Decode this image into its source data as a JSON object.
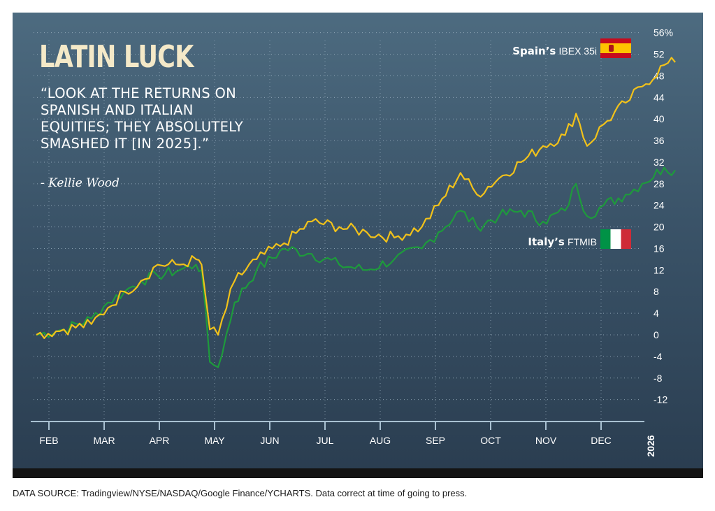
{
  "title": "LATIN LUCK",
  "quote": "“LOOK AT THE RETURNS ON SPANISH AND ITALIAN EQUITIES; THEY ABSOLUTELY SMASHED IT [IN 2025].”",
  "attribution": "- Kellie Wood",
  "source": "DATA SOURCE: Tradingview/NYSE/NASDAQ/Google Finance/YCHARTS. Data correct at time of going to press.",
  "year_label": "2026",
  "labels": {
    "spain_bold": "Spain’s",
    "spain_index": "IBEX 35i",
    "italy_bold": "Italy’s",
    "italy_index": "FTMIB"
  },
  "colors": {
    "spain": "#f2c21a",
    "italy": "#1e9a3c",
    "background_top": "#4d6b80",
    "background_bottom": "#2a3d50"
  },
  "icons": [
    "spain-flag-icon",
    "italy-flag-icon"
  ],
  "chart_data": {
    "type": "line",
    "title": "LATIN LUCK",
    "ylim": [
      -16,
      56
    ],
    "y_ticks": [
      "56%",
      "52",
      "48",
      "44",
      "40",
      "36",
      "32",
      "28",
      "24",
      "20",
      "16",
      "12",
      "8",
      "4",
      "0",
      "-4",
      "-8",
      "-12"
    ],
    "month_labels": [
      "FEB",
      "MAR",
      "APR",
      "MAY",
      "JUN",
      "JUL",
      "AUG",
      "SEP",
      "OCT",
      "NOV",
      "DEC"
    ],
    "x_unit": "months since 1 Jan 2025",
    "x": [
      0.0,
      0.5,
      1.0,
      1.3,
      1.6,
      1.9,
      2.2,
      2.6,
      2.9,
      3.0,
      3.15,
      3.3,
      3.6,
      4.0,
      4.5,
      5.0,
      5.5,
      6.0,
      6.5,
      7.0,
      7.3,
      7.7,
      8.0,
      8.4,
      8.8,
      9.2,
      9.6,
      9.8,
      10.0,
      10.3,
      10.7,
      11.0,
      11.4,
      11.6
    ],
    "series": [
      {
        "name": "Spain’s IBEX 35i",
        "values": [
          0,
          1,
          2,
          5,
          8,
          10,
          13,
          13,
          14,
          13,
          1,
          0,
          10,
          14,
          17,
          21,
          20,
          19,
          18,
          20,
          24,
          30,
          26,
          29,
          32,
          35,
          37,
          41,
          35,
          39,
          43,
          46,
          50,
          50.5
        ]
      },
      {
        "name": "Italy’s FTMIB",
        "values": [
          0,
          1,
          3,
          6,
          8,
          10,
          11,
          12,
          13,
          12,
          -5,
          -6,
          6,
          12,
          16,
          15,
          13,
          12,
          14,
          16,
          19,
          23,
          20,
          22,
          23,
          21,
          23,
          28,
          22,
          24,
          26,
          28,
          31,
          30.5
        ]
      }
    ]
  }
}
